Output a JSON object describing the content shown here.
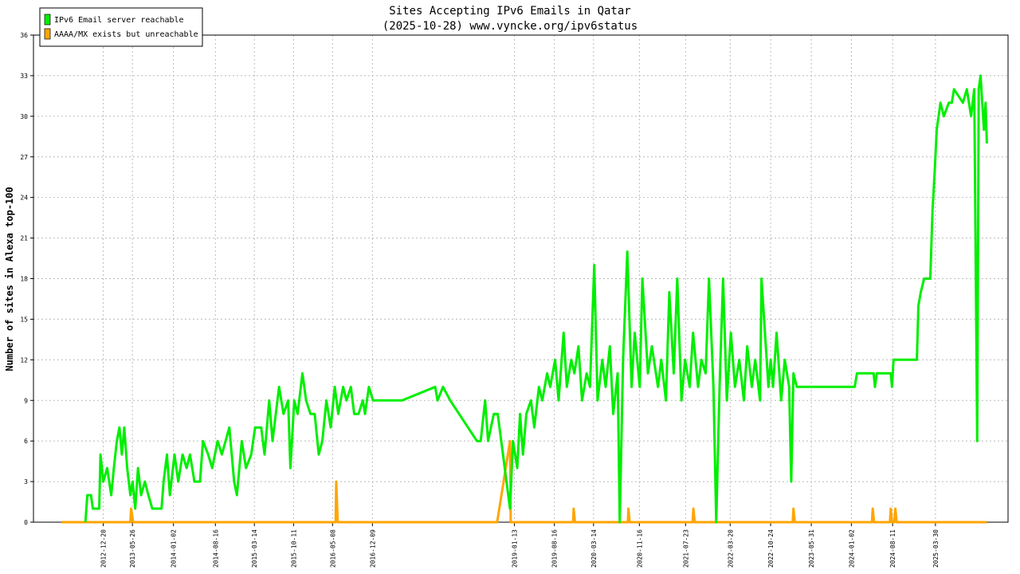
{
  "chart_data": {
    "type": "line",
    "title": "Sites Accepting IPv6 Emails in Qatar",
    "subtitle": "(2025-10-28) www.vyncke.org/ipv6status",
    "y_label": "Number of sites in Alexa top-100",
    "ylim": [
      0,
      36
    ],
    "yticks": [
      0,
      3,
      6,
      9,
      12,
      15,
      18,
      21,
      24,
      27,
      30,
      33,
      36
    ],
    "xlim": [
      "2011-12-10",
      "2026-04-25"
    ],
    "xticks": [
      "2012-12-20",
      "2013-05-26",
      "2014-01-02",
      "2014-08-16",
      "2015-03-14",
      "2015-10-11",
      "2016-05-08",
      "2016-12-09",
      "2019-01-13",
      "2019-08-16",
      "2020-03-14",
      "2020-11-16",
      "2021-07-23",
      "2022-03-20",
      "2022-10-24",
      "2023-05-31",
      "2024-01-02",
      "2024-08-11",
      "2025-03-30"
    ],
    "grid": true,
    "legend": "upper left",
    "series": [
      {
        "name": "IPv6 Email server reachable",
        "color": "#00ee00",
        "x": [
          "2012-09-15",
          "2012-09-25",
          "2012-10-15",
          "2012-10-25",
          "2012-11-28",
          "2012-12-05",
          "2012-12-20",
          "2013-01-10",
          "2013-02-01",
          "2013-02-15",
          "2013-03-03",
          "2013-03-17",
          "2013-03-30",
          "2013-04-12",
          "2013-04-28",
          "2013-05-15",
          "2013-05-27",
          "2013-06-10",
          "2013-06-25",
          "2013-07-12",
          "2013-08-01",
          "2013-08-20",
          "2013-09-10",
          "2013-10-30",
          "2013-11-10",
          "2013-11-28",
          "2013-12-14",
          "2014-01-08",
          "2014-01-28",
          "2014-02-20",
          "2014-03-14",
          "2014-04-01",
          "2014-04-25",
          "2014-05-25",
          "2014-06-10",
          "2014-07-08",
          "2014-07-30",
          "2014-08-28",
          "2014-09-20",
          "2014-10-30",
          "2014-11-25",
          "2014-12-10",
          "2015-01-05",
          "2015-01-28",
          "2015-02-25",
          "2015-03-18",
          "2015-04-20",
          "2015-05-08",
          "2015-06-02",
          "2015-06-20",
          "2015-07-25",
          "2015-08-18",
          "2015-09-12",
          "2015-09-24",
          "2015-10-15",
          "2015-11-02",
          "2015-11-28",
          "2015-12-18",
          "2016-01-10",
          "2016-02-02",
          "2016-02-24",
          "2016-03-14",
          "2016-04-05",
          "2016-04-28",
          "2016-05-20",
          "2016-06-08",
          "2016-07-04",
          "2016-07-22",
          "2016-08-15",
          "2016-09-02",
          "2016-09-25",
          "2016-10-18",
          "2016-10-30",
          "2016-11-20",
          "2016-12-12",
          "2017-01-01",
          "2017-05-18",
          "2017-11-12",
          "2017-11-25",
          "2017-12-24",
          "2018-02-01",
          "2018-06-25",
          "2018-07-15",
          "2018-08-08",
          "2018-08-24",
          "2018-09-24",
          "2018-10-15",
          "2018-12-20",
          "2019-01-05",
          "2019-01-28",
          "2019-02-12",
          "2019-02-28",
          "2019-03-18",
          "2019-04-12",
          "2019-04-30",
          "2019-05-25",
          "2019-06-12",
          "2019-07-08",
          "2019-07-25",
          "2019-08-20",
          "2019-09-08",
          "2019-10-05",
          "2019-10-22",
          "2019-11-15",
          "2019-12-02",
          "2019-12-24",
          "2020-01-12",
          "2020-02-06",
          "2020-02-24",
          "2020-03-18",
          "2020-04-05",
          "2020-04-30",
          "2020-05-18",
          "2020-06-10",
          "2020-06-28",
          "2020-07-22",
          "2020-08-02",
          "2020-08-20",
          "2020-09-12",
          "2020-10-05",
          "2020-10-22",
          "2020-11-18",
          "2020-12-02",
          "2021-01-01",
          "2021-01-22",
          "2021-02-24",
          "2021-03-14",
          "2021-04-08",
          "2021-04-26",
          "2021-05-20",
          "2021-06-08",
          "2021-07-01",
          "2021-07-20",
          "2021-08-14",
          "2021-09-01",
          "2021-09-28",
          "2021-10-16",
          "2021-11-08",
          "2021-11-26",
          "2021-12-20",
          "2022-01-04",
          "2022-01-22",
          "2022-02-10",
          "2022-03-02",
          "2022-03-24",
          "2022-04-15",
          "2022-05-08",
          "2022-06-02",
          "2022-06-20",
          "2022-07-15",
          "2022-08-02",
          "2022-08-28",
          "2022-09-05",
          "2022-10-12",
          "2022-10-24",
          "2022-11-06",
          "2022-11-25",
          "2022-12-20",
          "2023-01-08",
          "2023-02-01",
          "2023-02-12",
          "2023-02-24",
          "2023-03-14",
          "2023-03-25",
          "2024-01-20",
          "2024-02-01",
          "2024-05-01",
          "2024-05-08",
          "2024-05-18",
          "2024-08-01",
          "2024-08-08",
          "2024-08-16",
          "2024-12-20",
          "2024-12-28",
          "2025-01-10",
          "2025-01-28",
          "2025-03-02",
          "2025-03-14",
          "2025-03-26",
          "2025-04-06",
          "2025-04-26",
          "2025-05-14",
          "2025-06-10",
          "2025-06-26",
          "2025-07-08",
          "2025-08-25",
          "2025-09-15",
          "2025-10-08",
          "2025-10-25",
          "2025-11-10",
          "2025-11-18",
          "2025-11-28",
          "2025-12-16",
          "2025-12-25",
          "2026-01-01"
        ],
        "values": [
          0,
          2,
          2,
          1,
          1,
          5,
          3,
          4,
          2,
          4,
          6,
          7,
          5,
          7,
          4,
          2,
          3,
          1,
          4,
          2,
          3,
          2,
          1,
          1,
          3,
          5,
          2,
          5,
          3,
          5,
          4,
          5,
          3,
          3,
          6,
          5,
          4,
          6,
          5,
          7,
          3,
          2,
          6,
          4,
          5,
          7,
          7,
          5,
          9,
          6,
          10,
          8,
          9,
          4,
          9,
          8,
          11,
          9,
          8,
          8,
          5,
          6,
          9,
          7,
          10,
          8,
          10,
          9,
          10,
          8,
          8,
          9,
          8,
          10,
          9,
          9,
          9,
          10,
          9,
          10,
          9,
          6,
          6,
          9,
          6,
          8,
          8,
          1,
          6,
          4,
          8,
          5,
          8,
          9,
          7,
          10,
          9,
          11,
          10,
          12,
          9,
          14,
          10,
          12,
          11,
          13,
          9,
          11,
          10,
          19,
          9,
          12,
          10,
          13,
          8,
          11,
          0,
          12,
          20,
          10,
          14,
          10,
          18,
          11,
          13,
          10,
          12,
          9,
          17,
          11,
          18,
          9,
          12,
          10,
          14,
          10,
          12,
          11,
          18,
          10,
          0,
          10,
          18,
          9,
          14,
          10,
          12,
          9,
          13,
          10,
          12,
          9,
          18,
          10,
          12,
          10,
          14,
          9,
          12,
          10,
          3,
          11,
          10,
          10,
          10,
          11,
          11,
          10,
          11,
          11,
          10,
          12,
          12,
          16,
          17,
          18,
          18,
          23,
          26,
          29,
          31,
          30,
          31,
          31,
          32,
          31,
          32,
          30,
          32,
          6,
          32,
          33,
          29,
          31,
          28
        ]
      },
      {
        "name": "AAAA/MX exists but unreachable",
        "color": "#ffa500",
        "x": [
          "2012-05-10",
          "2013-05-15",
          "2013-05-19",
          "2013-05-30",
          "2016-05-25",
          "2016-05-28",
          "2016-06-05",
          "2018-10-12",
          "2018-12-20",
          "2018-12-24",
          "2019-11-25",
          "2019-11-28",
          "2019-12-05",
          "2020-09-15",
          "2020-09-18",
          "2020-09-25",
          "2021-08-30",
          "2021-09-03",
          "2021-09-10",
          "2023-02-20",
          "2023-02-24",
          "2023-03-03",
          "2024-04-22",
          "2024-04-26",
          "2024-05-03",
          "2024-07-28",
          "2024-08-01",
          "2024-08-08",
          "2024-08-20",
          "2024-08-26",
          "2024-09-02",
          "2026-01-01"
        ],
        "values": [
          0,
          0,
          1,
          0,
          0,
          3,
          0,
          0,
          6,
          0,
          0,
          1,
          0,
          0,
          1,
          0,
          0,
          1,
          0,
          0,
          1,
          0,
          0,
          1,
          0,
          0,
          1,
          0,
          0,
          1,
          0,
          0
        ]
      }
    ]
  }
}
